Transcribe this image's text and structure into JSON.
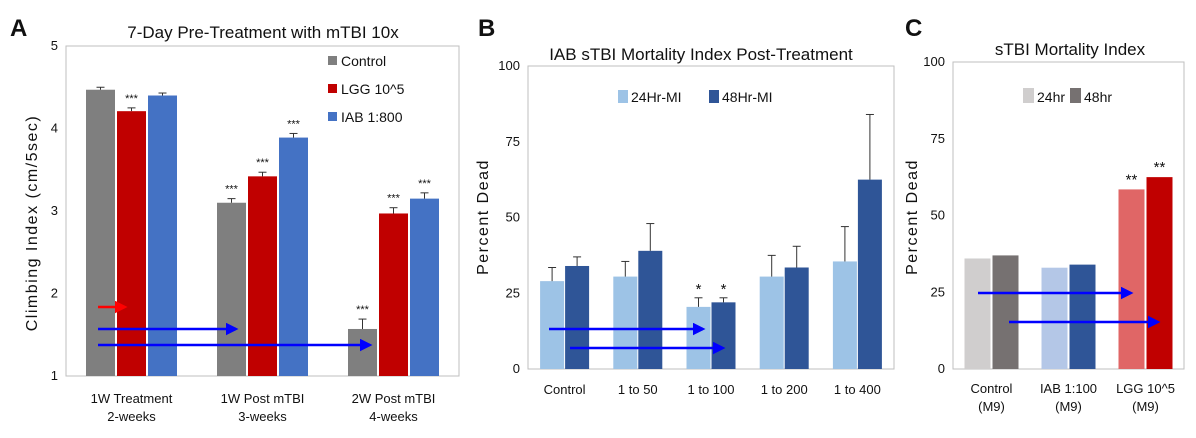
{
  "colors": {
    "control": "#7f7f7f",
    "lgg": "#c00000",
    "iab": "#4472c4",
    "light_blue": "#9dc3e6",
    "dark_blue": "#2f5597",
    "c_24": "#d0cece",
    "c_48": "#767171",
    "i_24": "#b4c7e7",
    "i_48": "#2f5597",
    "l_24": "#e06666",
    "l_48": "#c00000",
    "arrow_blue": "#0000ff",
    "arrow_red": "#ff0000"
  },
  "panel_a": {
    "letter": "A",
    "chart_data": {
      "type": "bar",
      "title": "7-Day Pre-Treatment with mTBI 10x",
      "ylabel": "Climbing Index (cm/5sec)",
      "ylim": [
        1,
        5
      ],
      "yticks": [
        "1",
        "2",
        "3",
        "4",
        "5"
      ],
      "categories": [
        [
          "1W Treatment",
          "2-weeks"
        ],
        [
          "1W Post mTBI",
          "3-weeks"
        ],
        [
          "2W Post mTBI",
          "4-weeks"
        ]
      ],
      "series": [
        {
          "name": "Control",
          "color_key": "control",
          "values": [
            4.47,
            3.1,
            1.57
          ],
          "errors": [
            0.03,
            0.05,
            0.12
          ],
          "marks": [
            "",
            "***",
            "***"
          ]
        },
        {
          "name": "LGG 10^5",
          "color_key": "lgg",
          "values": [
            4.21,
            3.42,
            2.97
          ],
          "errors": [
            0.04,
            0.05,
            0.07
          ],
          "marks": [
            "***",
            "***",
            "***"
          ]
        },
        {
          "name": "IAB 1:800",
          "color_key": "iab",
          "values": [
            4.4,
            3.89,
            3.15
          ],
          "errors": [
            0.03,
            0.05,
            0.07
          ],
          "marks": [
            "",
            "***",
            "***"
          ]
        }
      ]
    }
  },
  "panel_b": {
    "letter": "B",
    "chart_data": {
      "type": "bar",
      "title": "IAB sTBI Mortality Index Post-Treatment",
      "ylabel": "Percent Dead",
      "ylim": [
        0,
        100
      ],
      "yticks": [
        "0",
        "25",
        "50",
        "75",
        "100"
      ],
      "categories": [
        [
          "Control"
        ],
        [
          "1 to 50"
        ],
        [
          "1 to 100"
        ],
        [
          "1 to 200"
        ],
        [
          "1 to 400"
        ]
      ],
      "series": [
        {
          "name": "24Hr-MI",
          "color_key": "light_blue",
          "values": [
            29,
            30.5,
            20.5,
            30.5,
            35.5
          ],
          "errors": [
            4.5,
            5,
            3,
            7,
            11.5
          ],
          "marks": [
            "",
            "",
            "*",
            "",
            ""
          ]
        },
        {
          "name": "48Hr-MI",
          "color_key": "dark_blue",
          "values": [
            34,
            39,
            22,
            33.5,
            62.5
          ],
          "errors": [
            3,
            9,
            1.5,
            7,
            21.5
          ],
          "marks": [
            "",
            "",
            "*",
            "",
            ""
          ]
        }
      ]
    }
  },
  "panel_c": {
    "letter": "C",
    "chart_data": {
      "type": "bar",
      "title": "sTBI Mortality Index",
      "ylabel": "Percent Dead",
      "ylim": [
        0,
        100
      ],
      "yticks": [
        "0",
        "25",
        "50",
        "75",
        "100"
      ],
      "categories": [
        [
          "Control",
          "(M9)"
        ],
        [
          "IAB 1:100",
          "(M9)"
        ],
        [
          "LGG 10^5",
          "(M9)"
        ]
      ],
      "series": [
        {
          "name": "24hr",
          "legend_color_key": "c_24",
          "color_keys": [
            "c_24",
            "i_24",
            "l_24"
          ],
          "values": [
            36,
            33,
            58.5
          ],
          "marks": [
            "",
            "",
            "**"
          ]
        },
        {
          "name": "48hr",
          "legend_color_key": "c_48",
          "color_keys": [
            "c_48",
            "i_48",
            "l_48"
          ],
          "values": [
            37,
            34,
            62.5
          ],
          "marks": [
            "",
            "",
            "**"
          ]
        }
      ]
    }
  }
}
